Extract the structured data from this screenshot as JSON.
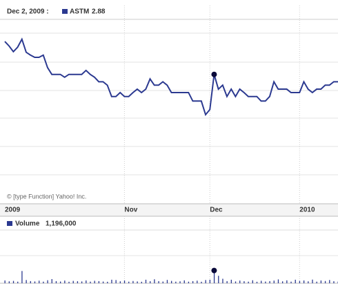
{
  "chart_data": [
    {
      "type": "line",
      "highlight_label": "Dec 2, 2009 :",
      "highlight_index": 49,
      "watermark": "© [type Function] Yahoo! Inc.",
      "series": [
        {
          "name": "ASTM",
          "color": "#2b3990",
          "values": [
            3.46,
            3.38,
            3.28,
            3.36,
            3.5,
            3.27,
            3.22,
            3.18,
            3.18,
            3.22,
            3.0,
            2.88,
            2.88,
            2.88,
            2.83,
            2.88,
            2.88,
            2.88,
            2.88,
            2.95,
            2.88,
            2.83,
            2.75,
            2.75,
            2.69,
            2.49,
            2.49,
            2.56,
            2.49,
            2.49,
            2.56,
            2.62,
            2.56,
            2.62,
            2.8,
            2.69,
            2.69,
            2.75,
            2.69,
            2.56,
            2.56,
            2.56,
            2.56,
            2.56,
            2.41,
            2.41,
            2.41,
            2.17,
            2.26,
            2.88,
            2.62,
            2.69,
            2.49,
            2.62,
            2.49,
            2.62,
            2.56,
            2.49,
            2.49,
            2.49,
            2.41,
            2.41,
            2.49,
            2.75,
            2.62,
            2.62,
            2.62,
            2.56,
            2.56,
            2.56,
            2.75,
            2.62,
            2.56,
            2.62,
            2.62,
            2.69,
            2.69,
            2.75,
            2.75
          ]
        }
      ],
      "xlim": [
        0,
        78
      ],
      "ylim": [
        0.6,
        3.85
      ],
      "xticks": [
        {
          "value": 0,
          "label": "2009"
        },
        {
          "value": 28,
          "label": "Nov"
        },
        {
          "value": 48,
          "label": "Dec"
        },
        {
          "value": 69,
          "label": "2010"
        }
      ],
      "grid": true
    },
    {
      "type": "bar",
      "highlight_index": 49,
      "series": [
        {
          "name": "Volume",
          "color": "#2b3990",
          "values": [
            260000,
            180000,
            220000,
            150000,
            1150000,
            300000,
            200000,
            170000,
            240000,
            150000,
            280000,
            390000,
            200000,
            160000,
            250000,
            140000,
            220000,
            190000,
            170000,
            260000,
            150000,
            230000,
            200000,
            160000,
            140000,
            330000,
            300000,
            180000,
            260000,
            150000,
            210000,
            170000,
            140000,
            330000,
            190000,
            370000,
            200000,
            160000,
            310000,
            220000,
            150000,
            180000,
            270000,
            150000,
            200000,
            240000,
            140000,
            300000,
            330000,
            1196000,
            700000,
            420000,
            200000,
            330000,
            170000,
            250000,
            190000,
            150000,
            280000,
            140000,
            230000,
            160000,
            200000,
            250000,
            360000,
            180000,
            270000,
            150000,
            330000,
            220000,
            260000,
            180000,
            340000,
            150000,
            260000,
            210000,
            300000,
            190000,
            160000
          ],
          "value_labels": {
            "49": "1,196,000"
          }
        }
      ],
      "xlim": [
        0,
        78
      ],
      "ylim": [
        0,
        5000000
      ]
    }
  ]
}
